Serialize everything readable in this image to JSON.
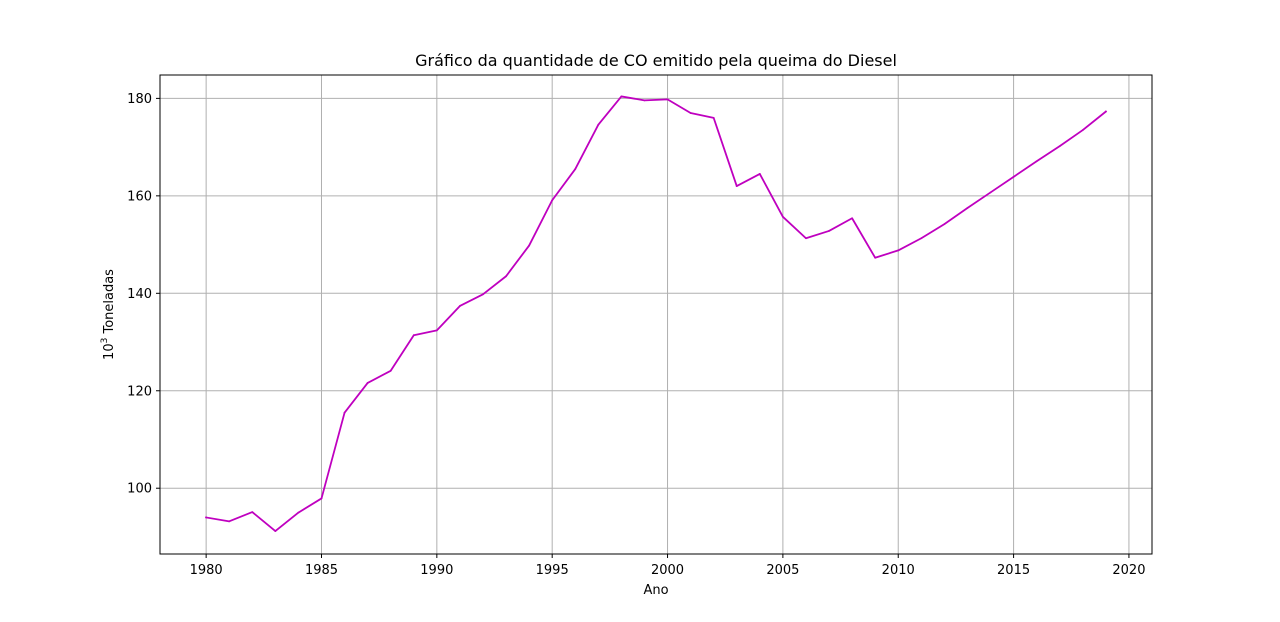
{
  "chart_data": {
    "type": "line",
    "title": "Gráfico da quantidade de CO emitido pela queima do Diesel",
    "xlabel": "Ano",
    "ylabel_base": "10",
    "ylabel_exponent": "3",
    "ylabel_text": " Toneladas",
    "xlim": [
      1978,
      2021
    ],
    "ylim": [
      86.5,
      184.8
    ],
    "x_ticks": [
      1980,
      1985,
      1990,
      1995,
      2000,
      2005,
      2010,
      2015,
      2020
    ],
    "y_ticks": [
      100,
      120,
      140,
      160,
      180
    ],
    "grid": true,
    "line_color": "#bf00bf",
    "series": [
      {
        "x": [
          1980,
          1981,
          1982,
          1983,
          1984,
          1985,
          1986,
          1987,
          1988,
          1989,
          1990,
          1991,
          1992,
          1993,
          1994,
          1995,
          1996,
          1997,
          1998,
          1999,
          2000,
          2001,
          2002,
          2003,
          2004,
          2005,
          2006,
          2007,
          2008,
          2009,
          2010,
          2011,
          2012,
          2013,
          2014,
          2015,
          2016,
          2017,
          2018,
          2019
        ],
        "values": [
          94.0,
          93.2,
          95.1,
          91.2,
          95.0,
          97.9,
          115.5,
          121.6,
          124.1,
          131.4,
          132.4,
          137.4,
          139.8,
          143.5,
          149.8,
          159.1,
          165.5,
          174.6,
          180.4,
          179.6,
          179.8,
          177.0,
          176.0,
          162.0,
          164.5,
          155.7,
          151.3,
          152.8,
          155.4,
          147.3,
          148.8,
          151.3,
          154.2,
          157.5,
          160.7,
          163.9,
          167.1,
          170.2,
          173.5,
          177.3
        ]
      }
    ]
  }
}
